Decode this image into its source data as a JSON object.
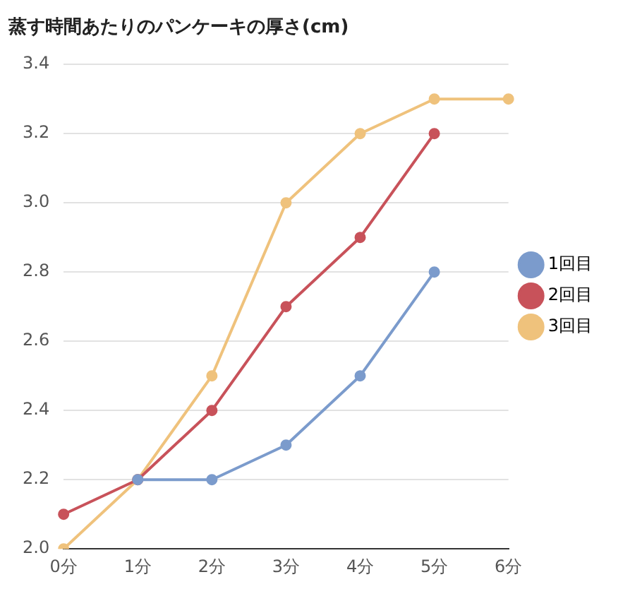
{
  "chart_data": {
    "type": "line",
    "title": "蒸す時間あたりのパンケーキの厚さ(cm)",
    "categories": [
      "0分",
      "1分",
      "2分",
      "3分",
      "4分",
      "5分",
      "6分"
    ],
    "series": [
      {
        "name": "1回目",
        "color": "#7b9bcc",
        "values": [
          null,
          2.2,
          2.2,
          2.3,
          2.5,
          2.8,
          null
        ]
      },
      {
        "name": "2回目",
        "color": "#c8525a",
        "values": [
          2.1,
          2.2,
          2.4,
          2.7,
          2.9,
          3.2,
          null
        ]
      },
      {
        "name": "3回目",
        "color": "#efc27c",
        "values": [
          2.0,
          2.2,
          2.5,
          3.0,
          3.2,
          3.3,
          3.3
        ]
      }
    ],
    "ylim": [
      2.0,
      3.4
    ],
    "yticks": [
      {
        "value": 2.0,
        "label": "2.0"
      },
      {
        "value": 2.2,
        "label": "2.2"
      },
      {
        "value": 2.4,
        "label": "2.4"
      },
      {
        "value": 2.6,
        "label": "2.6"
      },
      {
        "value": 2.8,
        "label": "2.8"
      },
      {
        "value": 3.0,
        "label": "3.0"
      },
      {
        "value": 3.2,
        "label": "3.2"
      },
      {
        "value": 3.4,
        "label": "3.4"
      }
    ],
    "grid": "y",
    "legend": "right",
    "marker": "circle",
    "line_style": "solid"
  }
}
